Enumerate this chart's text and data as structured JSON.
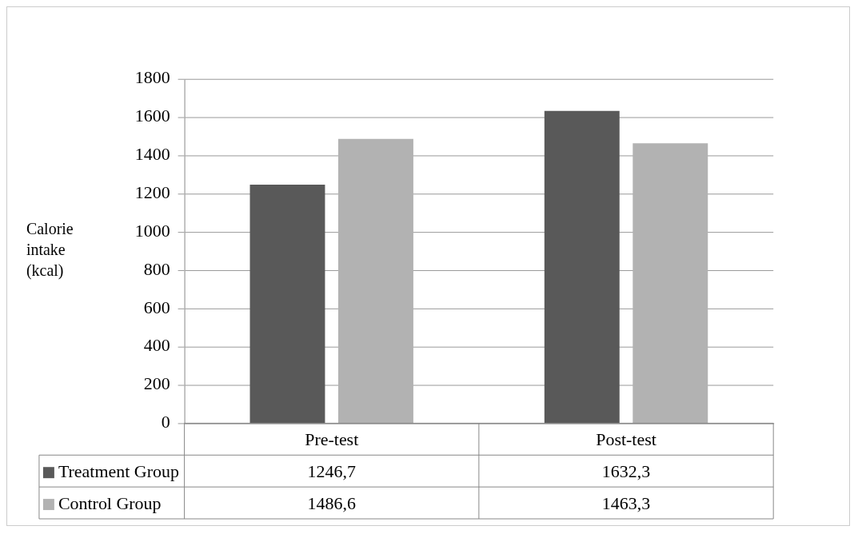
{
  "chart_data": {
    "type": "bar",
    "ylabel": "Calorie intake (kcal)",
    "categories": [
      "Pre-test",
      "Post-test"
    ],
    "series": [
      {
        "name": "Treatment Group",
        "color": "#595959",
        "values": [
          1246.7,
          1632.3
        ],
        "value_labels": [
          "1246,7",
          "1632,3"
        ]
      },
      {
        "name": "Control Group",
        "color": "#b2b2b2",
        "values": [
          1486.6,
          1463.3
        ],
        "value_labels": [
          "1486,6",
          "1463,3"
        ]
      }
    ],
    "ylim": [
      0,
      1800
    ],
    "yticks": [
      0,
      200,
      400,
      600,
      800,
      1000,
      1200,
      1400,
      1600,
      1800
    ],
    "grid": "y",
    "legend": "bottom left"
  }
}
